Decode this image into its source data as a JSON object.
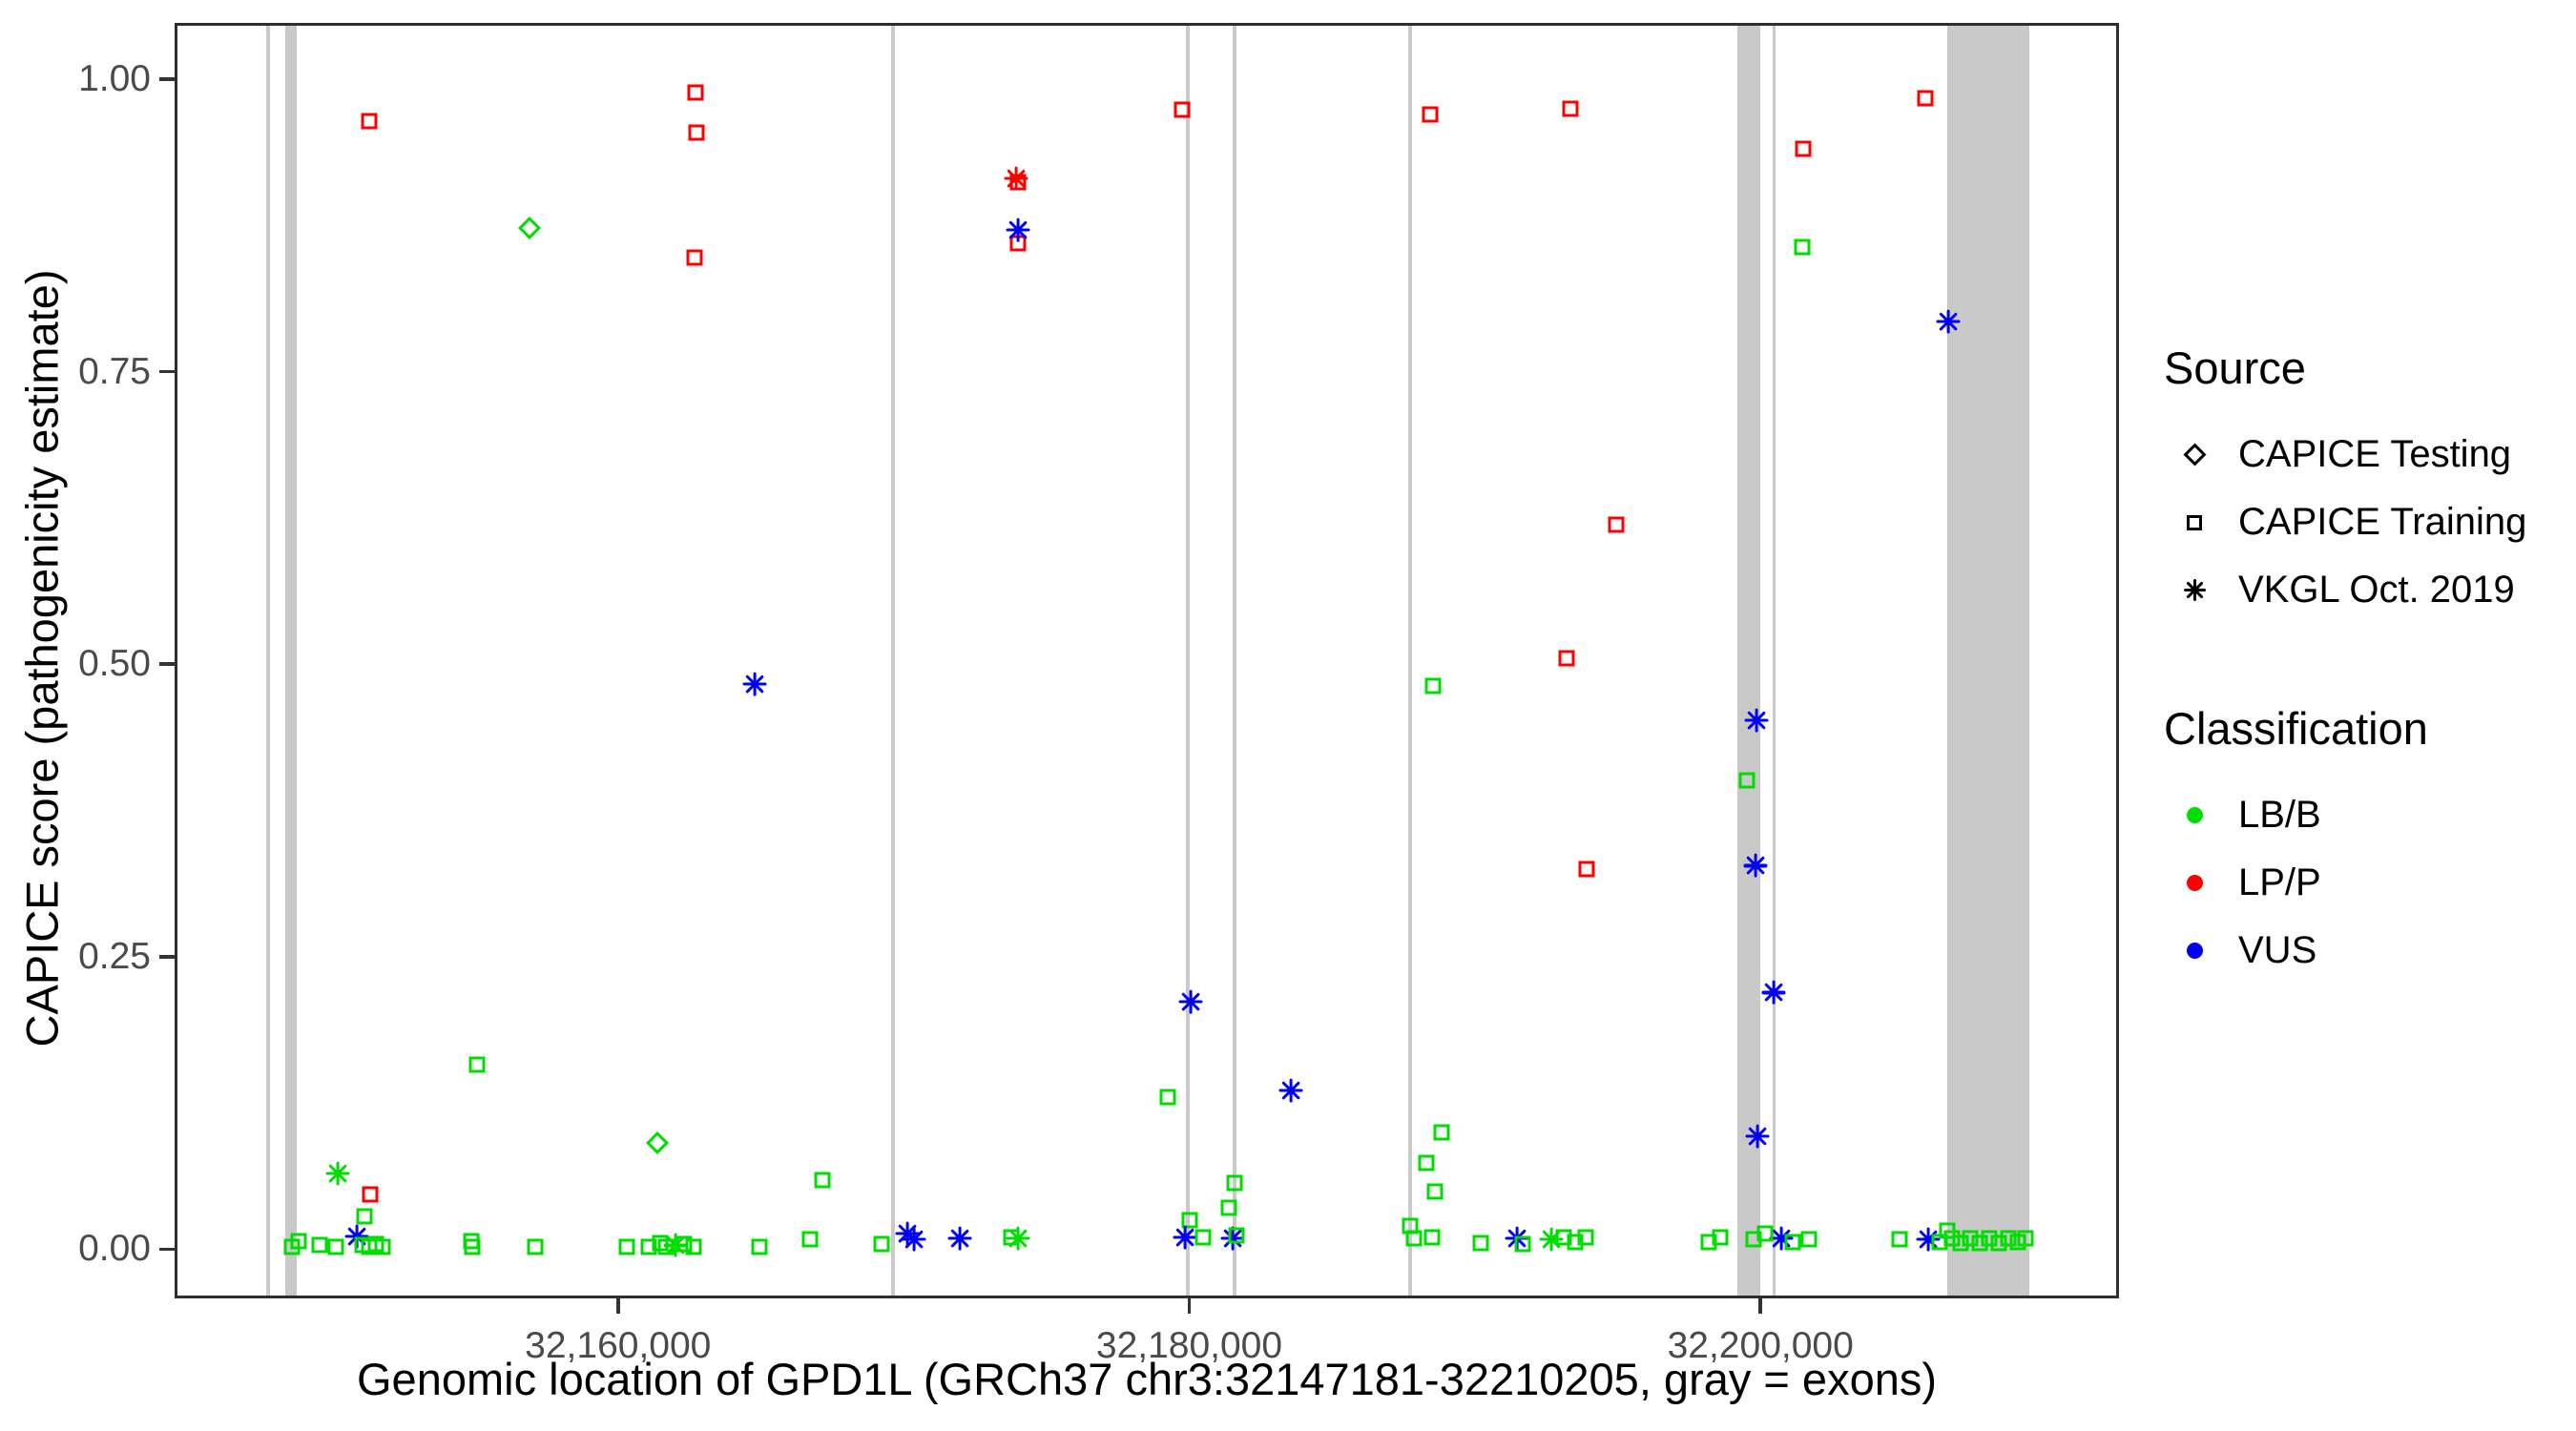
{
  "chart_data": {
    "type": "scatter",
    "title": "",
    "xlabel": "Genomic location of GPD1L (GRCh37 chr3:32147181-32210205, gray = exons)",
    "ylabel": "CAPICE score (pathogenicity estimate)",
    "xlim": [
      32144474,
      32212553
    ],
    "ylim": [
      -0.042,
      1.048
    ],
    "grid": "off",
    "x_ticks": [
      {
        "value": 32160000,
        "label": "32,160,000"
      },
      {
        "value": 32180000,
        "label": "32,180,000"
      },
      {
        "value": 32200000,
        "label": "32,200,000"
      }
    ],
    "y_ticks": [
      {
        "value": 0.0,
        "label": "0.00"
      },
      {
        "value": 0.25,
        "label": "0.25"
      },
      {
        "value": 0.5,
        "label": "0.50"
      },
      {
        "value": 0.75,
        "label": "0.75"
      },
      {
        "value": 1.0,
        "label": "1.00"
      }
    ],
    "legend": {
      "position": "right",
      "source": {
        "title": "Source",
        "items": [
          {
            "label": "CAPICE Testing",
            "symbol": "diamond-outline"
          },
          {
            "label": "CAPICE Training",
            "symbol": "square-outline"
          },
          {
            "label": "VKGL Oct. 2019",
            "symbol": "asterisk"
          }
        ]
      },
      "classification": {
        "title": "Classification",
        "items": [
          {
            "label": "LB/B",
            "color": "#00dd00"
          },
          {
            "label": "LP/P",
            "color": "#ff0000"
          },
          {
            "label": "VUS",
            "color": "#0000f5"
          }
        ]
      }
    },
    "colors": {
      "LB/B": "#00dd00",
      "LP/P": "#ff0000",
      "VUS": "#0000f5",
      "exon_gray": "#c9c9c9"
    },
    "shape_by_source": {
      "testing": "diamond",
      "training": "square",
      "vkgl": "asterisk"
    },
    "exons": [
      [
        32147580,
        32147714
      ],
      [
        32148249,
        32148650
      ],
      [
        32169528,
        32169662
      ],
      [
        32179884,
        32180018
      ],
      [
        32181521,
        32181654
      ],
      [
        32187700,
        32187834
      ],
      [
        32199258,
        32200060
      ],
      [
        32200494,
        32200594
      ],
      [
        32206607,
        32209513
      ]
    ],
    "points": [
      {
        "pos": 32151222,
        "score": 0.966,
        "source": "training",
        "class": "LP/P"
      },
      {
        "pos": 32162680,
        "score": 0.991,
        "source": "training",
        "class": "LP/P"
      },
      {
        "pos": 32162713,
        "score": 0.956,
        "source": "training",
        "class": "LP/P"
      },
      {
        "pos": 32162646,
        "score": 0.849,
        "source": "training",
        "class": "LP/P"
      },
      {
        "pos": 32174004,
        "score": 0.914,
        "source": "training",
        "class": "LP/P"
      },
      {
        "pos": 32174004,
        "score": 0.861,
        "source": "training",
        "class": "LP/P"
      },
      {
        "pos": 32179750,
        "score": 0.976,
        "source": "training",
        "class": "LP/P"
      },
      {
        "pos": 32188469,
        "score": 0.972,
        "source": "training",
        "class": "LP/P"
      },
      {
        "pos": 32193379,
        "score": 0.977,
        "source": "training",
        "class": "LP/P"
      },
      {
        "pos": 32201563,
        "score": 0.942,
        "source": "training",
        "class": "LP/P"
      },
      {
        "pos": 32205839,
        "score": 0.986,
        "source": "training",
        "class": "LP/P"
      },
      {
        "pos": 32193246,
        "score": 0.505,
        "source": "training",
        "class": "LP/P"
      },
      {
        "pos": 32194983,
        "score": 0.62,
        "source": "training",
        "class": "LP/P"
      },
      {
        "pos": 32193947,
        "score": 0.324,
        "source": "training",
        "class": "LP/P"
      },
      {
        "pos": 32151255,
        "score": 0.045,
        "source": "training",
        "class": "LP/P"
      },
      {
        "pos": 32173940,
        "score": 0.917,
        "source": "vkgl",
        "class": "LP/P"
      },
      {
        "pos": 32156834,
        "score": 0.874,
        "source": "testing",
        "class": "LB/B"
      },
      {
        "pos": 32161310,
        "score": 0.089,
        "source": "testing",
        "class": "LB/B"
      },
      {
        "pos": 32201530,
        "score": 0.858,
        "source": "training",
        "class": "LB/B"
      },
      {
        "pos": 32188570,
        "score": 0.481,
        "source": "training",
        "class": "LB/B"
      },
      {
        "pos": 32199592,
        "score": 0.4,
        "source": "training",
        "class": "LB/B"
      },
      {
        "pos": 32154997,
        "score": 0.156,
        "source": "training",
        "class": "LB/B"
      },
      {
        "pos": 32179249,
        "score": 0.128,
        "source": "training",
        "class": "LB/B"
      },
      {
        "pos": 32188870,
        "score": 0.098,
        "source": "training",
        "class": "LB/B"
      },
      {
        "pos": 32188336,
        "score": 0.072,
        "source": "training",
        "class": "LB/B"
      },
      {
        "pos": 32167122,
        "score": 0.057,
        "source": "training",
        "class": "LB/B"
      },
      {
        "pos": 32188636,
        "score": 0.047,
        "source": "training",
        "class": "LB/B"
      },
      {
        "pos": 32181587,
        "score": 0.055,
        "source": "training",
        "class": "LB/B"
      },
      {
        "pos": 32181387,
        "score": 0.033,
        "source": "training",
        "class": "LB/B"
      },
      {
        "pos": 32151055,
        "score": 0.026,
        "source": "training",
        "class": "LB/B"
      },
      {
        "pos": 32180017,
        "score": 0.023,
        "source": "training",
        "class": "LB/B"
      },
      {
        "pos": 32187767,
        "score": 0.018,
        "source": "training",
        "class": "LB/B"
      },
      {
        "pos": 32150086,
        "score": 0.063,
        "source": "vkgl",
        "class": "LB/B"
      },
      {
        "pos": 32161978,
        "score": 0.001,
        "source": "vkgl",
        "class": "LB/B"
      },
      {
        "pos": 32174004,
        "score": 0.007,
        "source": "vkgl",
        "class": "LB/B"
      },
      {
        "pos": 32192711,
        "score": 0.006,
        "source": "vkgl",
        "class": "LB/B"
      },
      {
        "pos": 32174004,
        "score": 0.873,
        "source": "vkgl",
        "class": "VUS"
      },
      {
        "pos": 32206641,
        "score": 0.794,
        "source": "vkgl",
        "class": "VUS"
      },
      {
        "pos": 32164751,
        "score": 0.483,
        "source": "vkgl",
        "class": "VUS"
      },
      {
        "pos": 32199926,
        "score": 0.452,
        "source": "vkgl",
        "class": "VUS"
      },
      {
        "pos": 32199893,
        "score": 0.327,
        "source": "vkgl",
        "class": "VUS"
      },
      {
        "pos": 32200527,
        "score": 0.218,
        "source": "vkgl",
        "class": "VUS"
      },
      {
        "pos": 32180051,
        "score": 0.21,
        "source": "vkgl",
        "class": "VUS"
      },
      {
        "pos": 32183558,
        "score": 0.134,
        "source": "vkgl",
        "class": "VUS"
      },
      {
        "pos": 32199959,
        "score": 0.095,
        "source": "vkgl",
        "class": "VUS"
      },
      {
        "pos": 32150787,
        "score": 0.009,
        "source": "vkgl",
        "class": "VUS"
      },
      {
        "pos": 32170096,
        "score": 0.011,
        "source": "vkgl",
        "class": "VUS"
      },
      {
        "pos": 32170330,
        "score": 0.006,
        "source": "vkgl",
        "class": "VUS"
      },
      {
        "pos": 32171933,
        "score": 0.007,
        "source": "vkgl",
        "class": "VUS"
      },
      {
        "pos": 32179850,
        "score": 0.008,
        "source": "vkgl",
        "class": "VUS"
      },
      {
        "pos": 32181520,
        "score": 0.007,
        "source": "vkgl",
        "class": "VUS"
      },
      {
        "pos": 32191508,
        "score": 0.007,
        "source": "vkgl",
        "class": "VUS"
      },
      {
        "pos": 32200794,
        "score": 0.007,
        "source": "vkgl",
        "class": "VUS"
      },
      {
        "pos": 32205939,
        "score": 0.006,
        "source": "vkgl",
        "class": "VUS"
      },
      {
        "pos": 32148483,
        "score": 0.0,
        "source": "training",
        "class": "LB/B"
      },
      {
        "pos": 32148717,
        "score": 0.005,
        "source": "training",
        "class": "LB/B"
      },
      {
        "pos": 32149452,
        "score": 0.001,
        "source": "training",
        "class": "LB/B"
      },
      {
        "pos": 32150019,
        "score": 0.0,
        "source": "training",
        "class": "LB/B"
      },
      {
        "pos": 32150988,
        "score": 0.001,
        "source": "training",
        "class": "LB/B"
      },
      {
        "pos": 32151222,
        "score": 0.0,
        "source": "training",
        "class": "LB/B"
      },
      {
        "pos": 32151456,
        "score": 0.002,
        "source": "training",
        "class": "LB/B"
      },
      {
        "pos": 32151690,
        "score": 0.0,
        "source": "training",
        "class": "LB/B"
      },
      {
        "pos": 32154796,
        "score": 0.005,
        "source": "training",
        "class": "LB/B"
      },
      {
        "pos": 32154830,
        "score": 0.0,
        "source": "training",
        "class": "LB/B"
      },
      {
        "pos": 32157034,
        "score": 0.0,
        "source": "training",
        "class": "LB/B"
      },
      {
        "pos": 32160241,
        "score": 0.0,
        "source": "training",
        "class": "LB/B"
      },
      {
        "pos": 32161009,
        "score": 0.0,
        "source": "training",
        "class": "LB/B"
      },
      {
        "pos": 32161410,
        "score": 0.003,
        "source": "training",
        "class": "LB/B"
      },
      {
        "pos": 32161644,
        "score": 0.0,
        "source": "training",
        "class": "LB/B"
      },
      {
        "pos": 32162279,
        "score": 0.002,
        "source": "training",
        "class": "LB/B"
      },
      {
        "pos": 32162613,
        "score": 0.0,
        "source": "training",
        "class": "LB/B"
      },
      {
        "pos": 32164918,
        "score": 0.0,
        "source": "training",
        "class": "LB/B"
      },
      {
        "pos": 32166688,
        "score": 0.006,
        "source": "training",
        "class": "LB/B"
      },
      {
        "pos": 32169194,
        "score": 0.002,
        "source": "training",
        "class": "LB/B"
      },
      {
        "pos": 32173770,
        "score": 0.008,
        "source": "training",
        "class": "LB/B"
      },
      {
        "pos": 32180485,
        "score": 0.008,
        "source": "training",
        "class": "LB/B"
      },
      {
        "pos": 32181654,
        "score": 0.01,
        "source": "training",
        "class": "LB/B"
      },
      {
        "pos": 32187901,
        "score": 0.007,
        "source": "training",
        "class": "LB/B"
      },
      {
        "pos": 32188536,
        "score": 0.008,
        "source": "training",
        "class": "LB/B"
      },
      {
        "pos": 32190239,
        "score": 0.003,
        "source": "training",
        "class": "LB/B"
      },
      {
        "pos": 32191709,
        "score": 0.002,
        "source": "training",
        "class": "LB/B"
      },
      {
        "pos": 32193145,
        "score": 0.008,
        "source": "training",
        "class": "LB/B"
      },
      {
        "pos": 32193546,
        "score": 0.004,
        "source": "training",
        "class": "LB/B"
      },
      {
        "pos": 32193913,
        "score": 0.008,
        "source": "training",
        "class": "LB/B"
      },
      {
        "pos": 32198255,
        "score": 0.004,
        "source": "training",
        "class": "LB/B"
      },
      {
        "pos": 32198656,
        "score": 0.008,
        "source": "training",
        "class": "LB/B"
      },
      {
        "pos": 32199826,
        "score": 0.006,
        "source": "training",
        "class": "LB/B"
      },
      {
        "pos": 32200226,
        "score": 0.011,
        "source": "training",
        "class": "LB/B"
      },
      {
        "pos": 32201195,
        "score": 0.004,
        "source": "training",
        "class": "LB/B"
      },
      {
        "pos": 32201763,
        "score": 0.006,
        "source": "training",
        "class": "LB/B"
      },
      {
        "pos": 32204937,
        "score": 0.006,
        "source": "training",
        "class": "LB/B"
      },
      {
        "pos": 32206607,
        "score": 0.014,
        "source": "training",
        "class": "LB/B"
      },
      {
        "pos": 32206340,
        "score": 0.004,
        "source": "training",
        "class": "LB/B"
      },
      {
        "pos": 32206774,
        "score": 0.007,
        "source": "training",
        "class": "LB/B"
      },
      {
        "pos": 32207108,
        "score": 0.003,
        "source": "training",
        "class": "LB/B"
      },
      {
        "pos": 32207442,
        "score": 0.007,
        "source": "training",
        "class": "LB/B"
      },
      {
        "pos": 32207776,
        "score": 0.003,
        "source": "training",
        "class": "LB/B"
      },
      {
        "pos": 32208110,
        "score": 0.007,
        "source": "training",
        "class": "LB/B"
      },
      {
        "pos": 32208444,
        "score": 0.003,
        "source": "training",
        "class": "LB/B"
      },
      {
        "pos": 32208778,
        "score": 0.007,
        "source": "training",
        "class": "LB/B"
      },
      {
        "pos": 32209112,
        "score": 0.004,
        "source": "training",
        "class": "LB/B"
      },
      {
        "pos": 32209379,
        "score": 0.007,
        "source": "training",
        "class": "LB/B"
      }
    ]
  }
}
